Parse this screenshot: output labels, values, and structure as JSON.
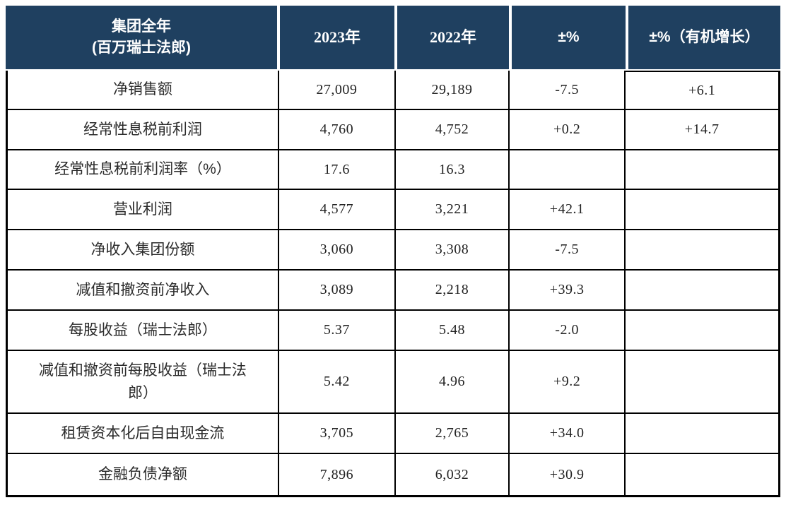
{
  "colors": {
    "header_bg": "#1F4060",
    "header_text": "#FFFFFF",
    "body_border": "#000000",
    "body_text": "#222222"
  },
  "table": {
    "header": {
      "group_line1": "集团全年",
      "group_line2": "(百万瑞士法郎)",
      "y2023": "2023年",
      "y2022": "2022年",
      "pct": "±%",
      "pct_organic": "±%（有机增长）"
    },
    "rows": [
      {
        "label": "净销售额",
        "y2023": "27,009",
        "y2022": "29,189",
        "pct": "-7.5",
        "organic": "+6.1"
      },
      {
        "label": "经常性息税前利润",
        "y2023": "4,760",
        "y2022": "4,752",
        "pct": "+0.2",
        "organic": "+14.7"
      },
      {
        "label": "经常性息税前利润率（%）",
        "y2023": "17.6",
        "y2022": "16.3",
        "pct": "",
        "organic": ""
      },
      {
        "label": "营业利润",
        "y2023": "4,577",
        "y2022": "3,221",
        "pct": "+42.1",
        "organic": ""
      },
      {
        "label": "净收入集团份额",
        "y2023": "3,060",
        "y2022": "3,308",
        "pct": "-7.5",
        "organic": ""
      },
      {
        "label": "减值和撤资前净收入",
        "y2023": "3,089",
        "y2022": "2,218",
        "pct": "+39.3",
        "organic": ""
      },
      {
        "label": "每股收益（瑞士法郎）",
        "y2023": "5.37",
        "y2022": "5.48",
        "pct": "-2.0",
        "organic": ""
      },
      {
        "label": "减值和撤资前每股收益（瑞士法郎）",
        "y2023": "5.42",
        "y2022": "4.96",
        "pct": "+9.2",
        "organic": ""
      },
      {
        "label": "租赁资本化后自由现金流",
        "y2023": "3,705",
        "y2022": "2,765",
        "pct": "+34.0",
        "organic": ""
      },
      {
        "label": "金融负债净额",
        "y2023": "7,896",
        "y2022": "6,032",
        "pct": "+30.9",
        "organic": ""
      }
    ]
  }
}
